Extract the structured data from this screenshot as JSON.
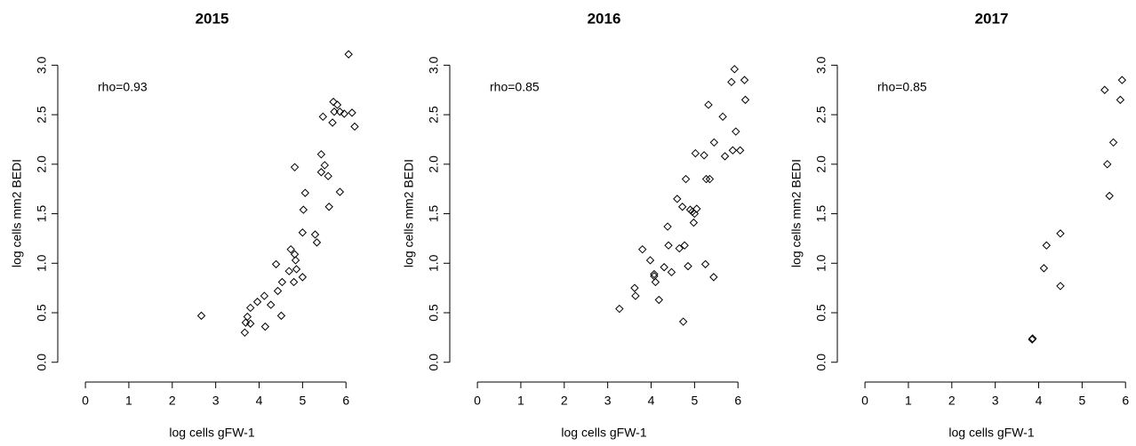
{
  "chart_data": [
    {
      "type": "scatter",
      "title": "2015",
      "x_label": "log cells gFW-1",
      "y_label": "log cells mm2 BEDI",
      "annotation": "rho=0.93",
      "xlim": [
        -0.37,
        6.2
      ],
      "ylim": [
        -0.11,
        3.12
      ],
      "xticks": [
        0,
        1,
        2,
        3,
        4,
        5,
        6
      ],
      "yticks": [
        {
          "value": 0,
          "label": "0.0"
        },
        0.5,
        {
          "value": 1,
          "label": "1.0"
        },
        1.5,
        {
          "value": 2,
          "label": "2.0"
        },
        2.5,
        {
          "value": 3,
          "label": "3.0"
        }
      ],
      "color": "#000000",
      "x": [
        2.67,
        3.67,
        3.69,
        3.73,
        3.8,
        3.8,
        3.96,
        4.12,
        4.14,
        4.27,
        4.39,
        4.43,
        4.53,
        4.51,
        4.69,
        4.73,
        4.8,
        4.82,
        4.84,
        4.86,
        4.82,
        5.0,
        5.0,
        5.02,
        5.06,
        5.29,
        5.33,
        5.43,
        5.43,
        5.47,
        5.51,
        5.59,
        5.61,
        5.69,
        5.71,
        5.73,
        5.8,
        5.86,
        5.86,
        5.96,
        6.06,
        6.14,
        6.2
      ],
      "values": [
        0.47,
        0.3,
        0.4,
        0.46,
        0.39,
        0.55,
        0.61,
        0.67,
        0.36,
        0.58,
        0.99,
        0.72,
        0.81,
        0.47,
        0.92,
        1.14,
        0.81,
        1.09,
        1.03,
        0.94,
        1.97,
        0.86,
        1.31,
        1.54,
        1.71,
        1.29,
        1.21,
        2.1,
        1.92,
        2.48,
        1.99,
        1.88,
        1.57,
        2.42,
        2.63,
        2.53,
        2.6,
        1.72,
        2.53,
        2.51,
        3.11,
        2.52,
        2.38
      ]
    },
    {
      "type": "scatter",
      "title": "2016",
      "x_label": "log cells gFW-1",
      "y_label": "log cells mm2 BEDI",
      "annotation": "rho=0.85",
      "xlim": [
        -0.37,
        6.2
      ],
      "ylim": [
        -0.11,
        3.12
      ],
      "xticks": [
        0,
        1,
        2,
        3,
        4,
        5,
        6
      ],
      "yticks": [
        {
          "value": 0,
          "label": "0.0"
        },
        0.5,
        {
          "value": 1,
          "label": "1.0"
        },
        1.5,
        {
          "value": 2,
          "label": "2.0"
        },
        2.5,
        {
          "value": 3,
          "label": "3.0"
        }
      ],
      "color": "#000000",
      "x": [
        3.27,
        3.62,
        3.64,
        3.8,
        3.98,
        4.07,
        4.07,
        4.1,
        4.18,
        4.3,
        4.38,
        4.4,
        4.47,
        4.6,
        4.65,
        4.72,
        4.74,
        4.77,
        4.8,
        4.85,
        4.9,
        4.95,
        4.98,
        5.0,
        5.02,
        5.05,
        5.22,
        5.25,
        5.27,
        5.32,
        5.35,
        5.44,
        5.45,
        5.65,
        5.7,
        5.85,
        5.88,
        5.92,
        5.95,
        6.05,
        6.15,
        6.17
      ],
      "values": [
        0.54,
        0.75,
        0.67,
        1.14,
        1.03,
        0.89,
        0.87,
        0.81,
        0.63,
        0.96,
        1.37,
        1.18,
        0.91,
        1.65,
        1.15,
        1.57,
        0.41,
        1.18,
        1.85,
        0.97,
        1.54,
        1.52,
        1.41,
        1.5,
        2.11,
        1.55,
        2.09,
        0.99,
        1.85,
        2.6,
        1.85,
        0.86,
        2.22,
        2.48,
        2.08,
        2.83,
        2.14,
        2.96,
        2.33,
        2.14,
        2.85,
        2.65
      ]
    },
    {
      "type": "scatter",
      "title": "2017",
      "x_label": "log cells gFW-1",
      "y_label": "log cells mm2 BEDI",
      "annotation": "rho=0.85",
      "xlim": [
        -0.37,
        6.2
      ],
      "ylim": [
        -0.11,
        3.12
      ],
      "xticks": [
        0,
        1,
        2,
        3,
        4,
        5,
        6
      ],
      "yticks": [
        {
          "value": 0,
          "label": "0.0"
        },
        0.5,
        {
          "value": 1,
          "label": "1.0"
        },
        1.5,
        {
          "value": 2,
          "label": "2.0"
        },
        2.5,
        {
          "value": 3,
          "label": "3.0"
        }
      ],
      "color": "#000000",
      "x": [
        3.85,
        3.86,
        4.12,
        4.18,
        4.5,
        4.5,
        5.52,
        5.58,
        5.63,
        5.72,
        5.88,
        5.92
      ],
      "values": [
        0.23,
        0.24,
        0.95,
        1.18,
        1.3,
        0.77,
        2.75,
        2.0,
        1.68,
        2.22,
        2.65,
        2.85
      ]
    }
  ]
}
